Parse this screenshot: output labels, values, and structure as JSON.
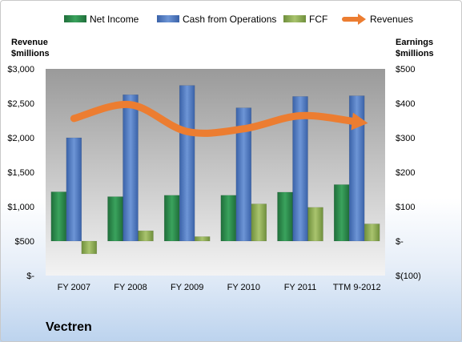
{
  "chart_data": {
    "type": "bar",
    "title": "Vectren",
    "categories": [
      "FY 2007",
      "FY 2008",
      "FY 2009",
      "FY 2010",
      "FY 2011",
      "TTM 9-2012"
    ],
    "left_axis": {
      "label_line1": "Revenue",
      "label_line2": "$millions",
      "ylim": [
        0,
        3000
      ],
      "ticks": [
        0,
        500,
        1000,
        1500,
        2000,
        2500,
        3000
      ],
      "tick_labels": [
        "$-",
        "$500",
        "$1,000",
        "$1,500",
        "$2,000",
        "$2,500",
        "$3,000"
      ]
    },
    "right_axis": {
      "label_line1": "Earnings",
      "label_line2": "$millions",
      "ylim": [
        -100,
        500
      ],
      "ticks": [
        -100,
        0,
        100,
        200,
        300,
        400,
        500
      ],
      "tick_labels": [
        "$(100)",
        "$-",
        "$100",
        "$200",
        "$300",
        "$400",
        "$500"
      ]
    },
    "series": [
      {
        "name": "Net Income",
        "axis": "right",
        "type": "bar",
        "color": "#2e8b4e",
        "values": [
          143,
          129,
          133,
          133,
          142,
          164
        ]
      },
      {
        "name": "Cash from Operations",
        "axis": "right",
        "type": "bar",
        "color": "#4f7ac0",
        "values": [
          300,
          425,
          452,
          387,
          420,
          422
        ]
      },
      {
        "name": "FCF",
        "axis": "right",
        "type": "bar",
        "color": "#8fb05a",
        "values": [
          -37,
          30,
          13,
          108,
          98,
          50
        ]
      },
      {
        "name": "Revenues",
        "axis": "left",
        "type": "line",
        "color": "#ec7d31",
        "values": [
          2280,
          2480,
          2090,
          2130,
          2320,
          2230
        ]
      }
    ],
    "legend_position": "top",
    "grid": false,
    "plot_bg": "#a6a6a6"
  }
}
